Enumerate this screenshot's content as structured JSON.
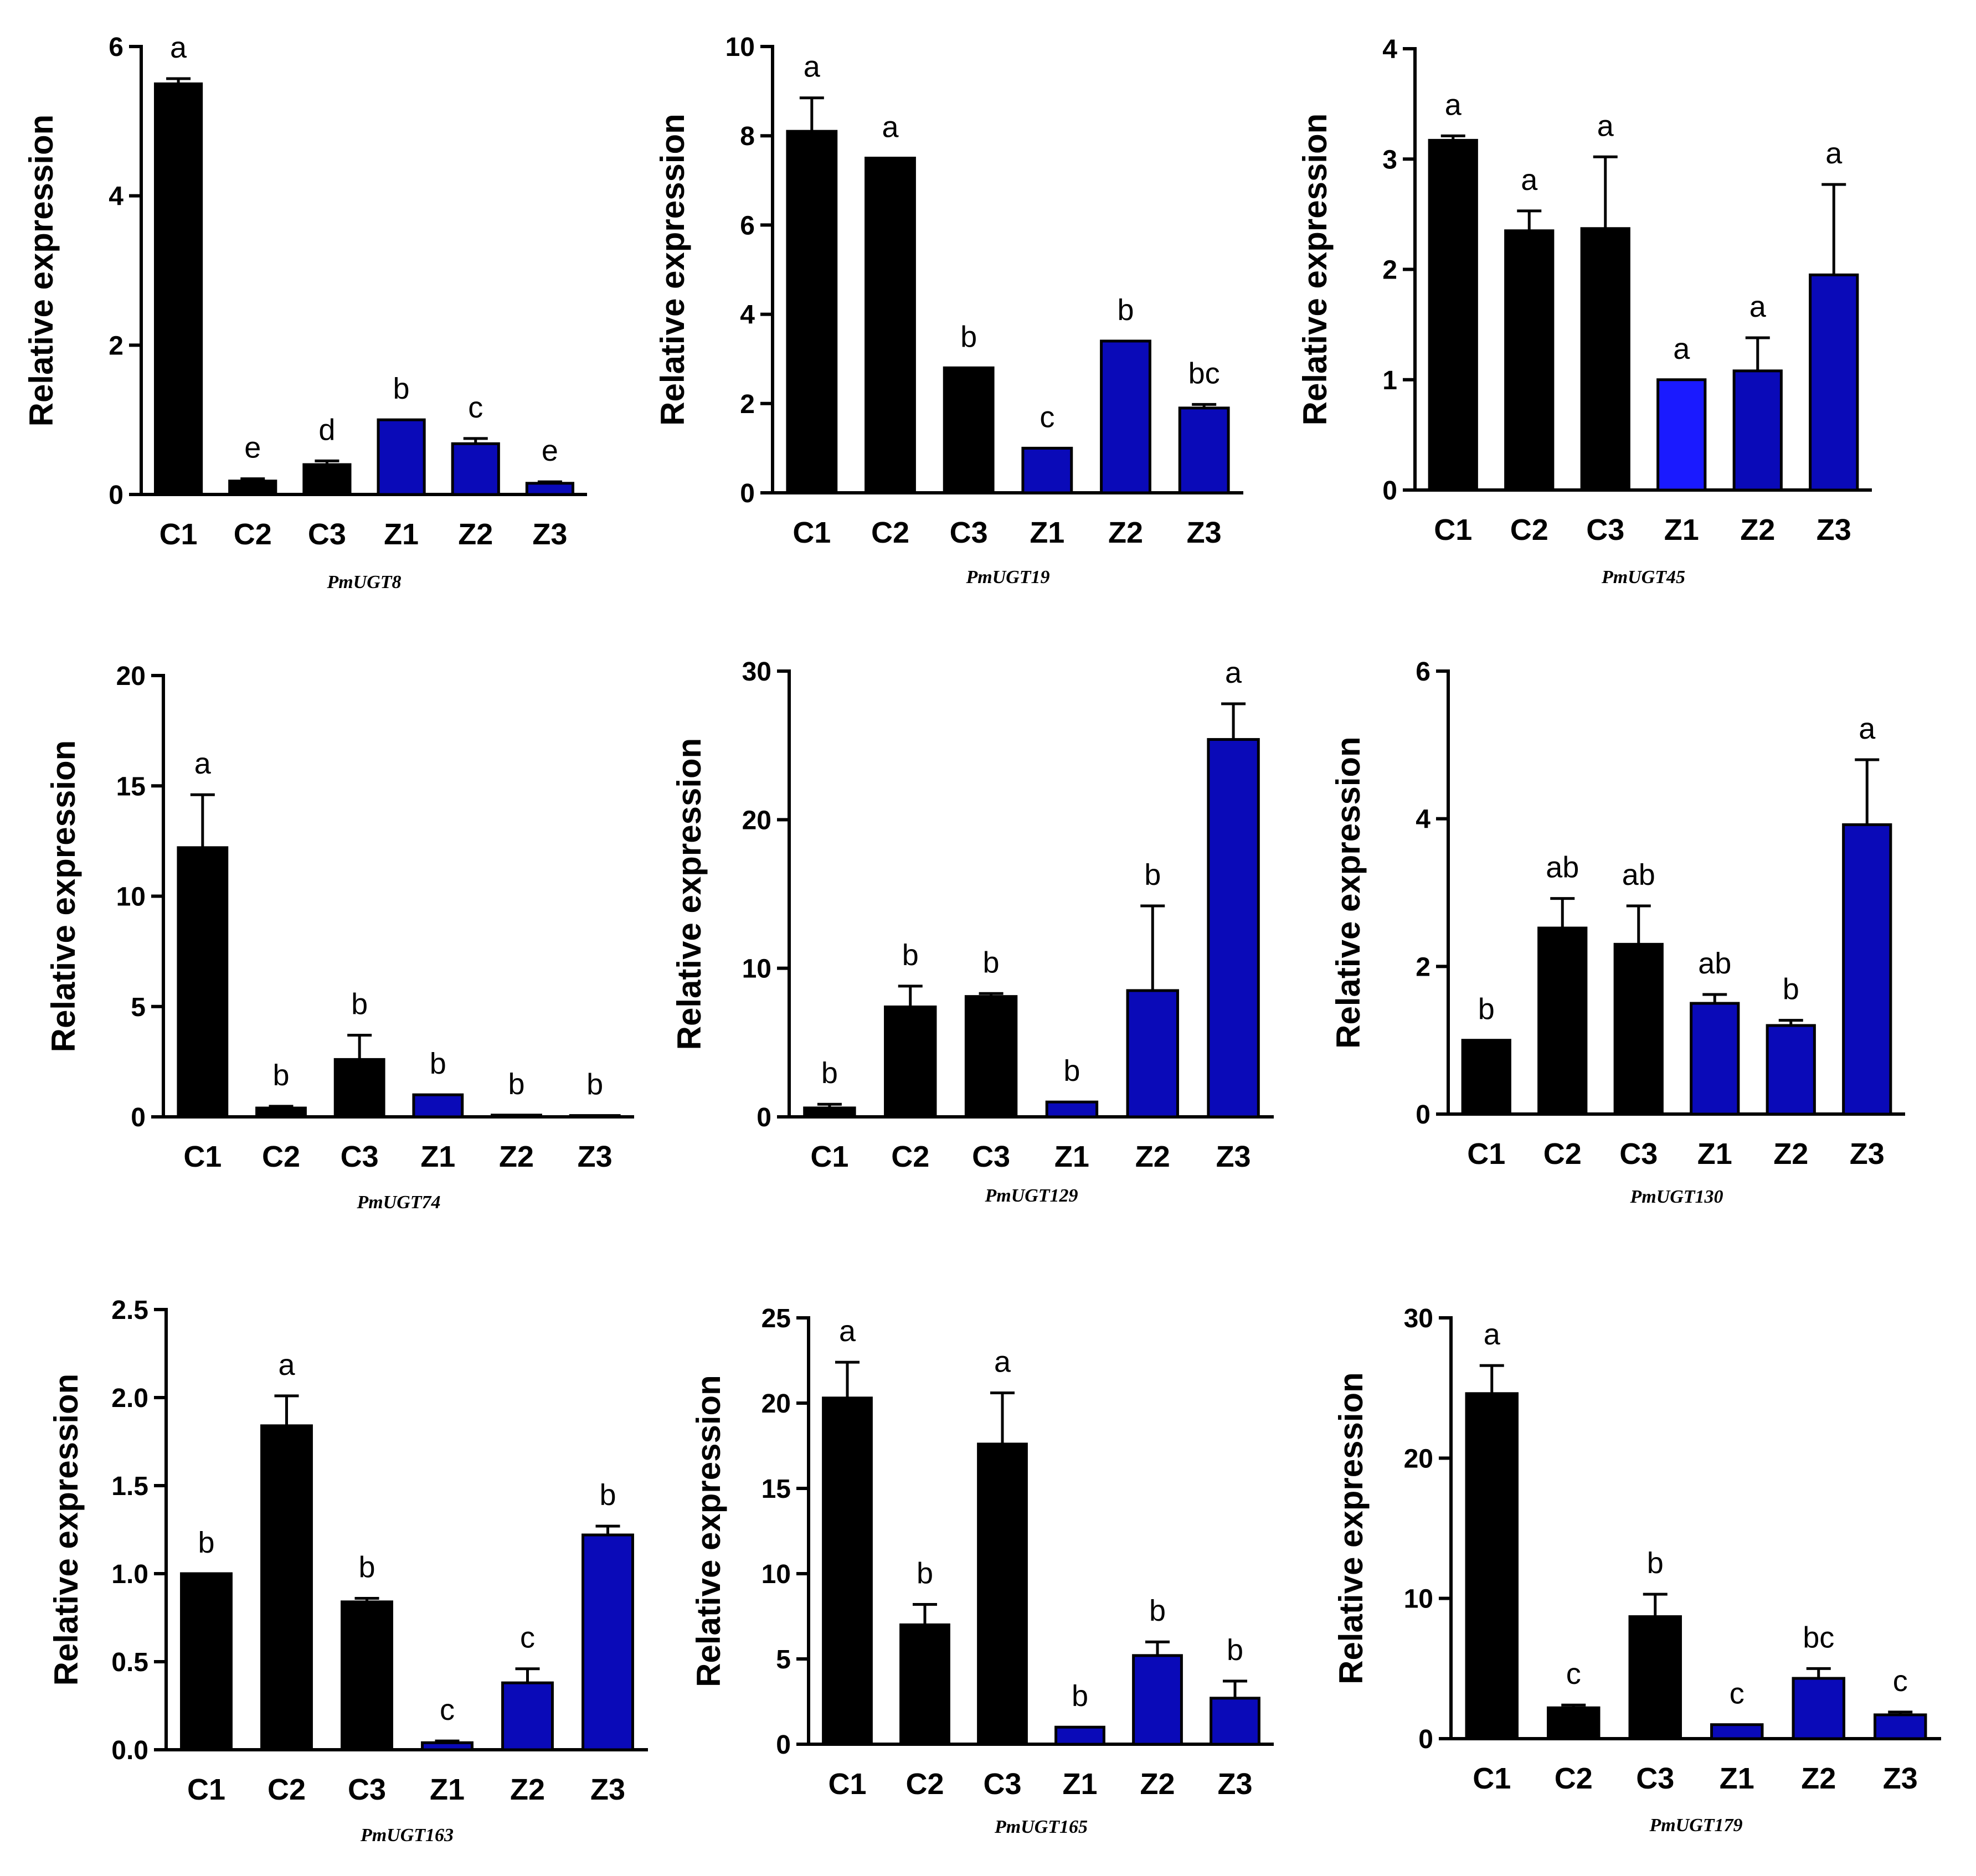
{
  "colors": {
    "control": "#000000",
    "treatment": "#0a0ab8",
    "treatment_bright": "#1a1aff"
  },
  "chart_data": [
    {
      "type": "bar",
      "title": "PmUGT8",
      "ylabel": "Relative expression",
      "xlabel": "",
      "categories": [
        "C1",
        "C2",
        "C3",
        "Z1",
        "Z2",
        "Z3"
      ],
      "values": [
        5.5,
        0.18,
        0.4,
        1.0,
        0.68,
        0.15
      ],
      "errors": [
        0.07,
        0.03,
        0.05,
        0.0,
        0.07,
        0.02
      ],
      "letters": [
        "a",
        "e",
        "d",
        "b",
        "c",
        "e"
      ],
      "ylim": [
        0,
        6
      ],
      "yticks": [
        0,
        2,
        4,
        6
      ],
      "ytick_labels": [
        "0",
        "2",
        "4",
        "6"
      ]
    },
    {
      "type": "bar",
      "title": "PmUGT19",
      "ylabel": "Relative expression",
      "xlabel": "",
      "categories": [
        "C1",
        "C2",
        "C3",
        "Z1",
        "Z2",
        "Z3"
      ],
      "values": [
        8.1,
        7.5,
        2.8,
        1.0,
        3.4,
        1.9
      ],
      "errors": [
        0.75,
        0.0,
        0.0,
        0.0,
        0.0,
        0.08
      ],
      "letters": [
        "a",
        "a",
        "b",
        "c",
        "b",
        "bc"
      ],
      "ylim": [
        0,
        10
      ],
      "yticks": [
        0,
        2,
        4,
        6,
        8,
        10
      ],
      "ytick_labels": [
        "0",
        "2",
        "4",
        "6",
        "8",
        "10"
      ]
    },
    {
      "type": "bar",
      "title": "PmUGT45",
      "ylabel": "Relative expression",
      "xlabel": "",
      "categories": [
        "C1",
        "C2",
        "C3",
        "Z1",
        "Z2",
        "Z3"
      ],
      "values": [
        3.17,
        2.35,
        2.37,
        1.0,
        1.08,
        1.95
      ],
      "errors": [
        0.04,
        0.18,
        0.65,
        0.0,
        0.3,
        0.82
      ],
      "letters": [
        "a",
        "a",
        "a",
        "a",
        "a",
        "a"
      ],
      "ylim": [
        0,
        4
      ],
      "yticks": [
        0,
        1,
        2,
        3,
        4
      ],
      "ytick_labels": [
        "0",
        "1",
        "2",
        "3",
        "4"
      ]
    },
    {
      "type": "bar",
      "title": "PmUGT74",
      "ylabel": "Relative expression",
      "xlabel": "",
      "categories": [
        "C1",
        "C2",
        "C3",
        "Z1",
        "Z2",
        "Z3"
      ],
      "values": [
        12.2,
        0.4,
        2.6,
        1.0,
        0.08,
        0.06
      ],
      "errors": [
        2.4,
        0.08,
        1.1,
        0.0,
        0.0,
        0.0
      ],
      "letters": [
        "a",
        "b",
        "b",
        "b",
        "b",
        "b"
      ],
      "ylim": [
        0,
        20
      ],
      "yticks": [
        0,
        5,
        10,
        15,
        20
      ],
      "ytick_labels": [
        "0",
        "5",
        "10",
        "15",
        "20"
      ]
    },
    {
      "type": "bar",
      "title": "PmUGT129",
      "ylabel": "Relative expression",
      "xlabel": "",
      "categories": [
        "C1",
        "C2",
        "C3",
        "Z1",
        "Z2",
        "Z3"
      ],
      "values": [
        0.6,
        7.4,
        8.1,
        1.0,
        8.5,
        25.4
      ],
      "errors": [
        0.25,
        1.4,
        0.2,
        0.0,
        5.7,
        2.4
      ],
      "letters": [
        "b",
        "b",
        "b",
        "b",
        "b",
        "a"
      ],
      "ylim": [
        0,
        30
      ],
      "yticks": [
        0,
        10,
        20,
        30
      ],
      "ytick_labels": [
        "0",
        "10",
        "20",
        "30"
      ]
    },
    {
      "type": "bar",
      "title": "PmUGT130",
      "ylabel": "Relative expression",
      "xlabel": "",
      "categories": [
        "C1",
        "C2",
        "C3",
        "Z1",
        "Z2",
        "Z3"
      ],
      "values": [
        1.0,
        2.52,
        2.3,
        1.5,
        1.2,
        3.92
      ],
      "errors": [
        0.0,
        0.4,
        0.52,
        0.12,
        0.07,
        0.88
      ],
      "letters": [
        "b",
        "ab",
        "ab",
        "ab",
        "b",
        "a"
      ],
      "ylim": [
        0,
        6
      ],
      "yticks": [
        0,
        2,
        4,
        6
      ],
      "ytick_labels": [
        "0",
        "2",
        "4",
        "6"
      ]
    },
    {
      "type": "bar",
      "title": "PmUGT163",
      "ylabel": "Relative expression",
      "xlabel": "",
      "categories": [
        "C1",
        "C2",
        "C3",
        "Z1",
        "Z2",
        "Z3"
      ],
      "values": [
        1.0,
        1.84,
        0.84,
        0.04,
        0.38,
        1.22
      ],
      "errors": [
        0.0,
        0.17,
        0.02,
        0.01,
        0.08,
        0.05
      ],
      "letters": [
        "b",
        "a",
        "b",
        "c",
        "c",
        "b"
      ],
      "ylim": [
        0,
        2.5
      ],
      "yticks": [
        0,
        0.5,
        1.0,
        1.5,
        2.0,
        2.5
      ],
      "ytick_labels": [
        "0.0",
        "0.5",
        "1.0",
        "1.5",
        "2.0",
        "2.5"
      ]
    },
    {
      "type": "bar",
      "title": "PmUGT165",
      "ylabel": "Relative expression",
      "xlabel": "",
      "categories": [
        "C1",
        "C2",
        "C3",
        "Z1",
        "Z2",
        "Z3"
      ],
      "values": [
        20.3,
        7.0,
        17.6,
        1.0,
        5.2,
        2.7
      ],
      "errors": [
        2.1,
        1.2,
        3.0,
        0.0,
        0.8,
        1.0
      ],
      "letters": [
        "a",
        "b",
        "a",
        "b",
        "b",
        "b"
      ],
      "ylim": [
        0,
        25
      ],
      "yticks": [
        0,
        5,
        10,
        15,
        20,
        25
      ],
      "ytick_labels": [
        "0",
        "5",
        "10",
        "15",
        "20",
        "25"
      ]
    },
    {
      "type": "bar",
      "title": "PmUGT179",
      "ylabel": "Relative expression",
      "xlabel": "",
      "categories": [
        "C1",
        "C2",
        "C3",
        "Z1",
        "Z2",
        "Z3"
      ],
      "values": [
        24.6,
        2.2,
        8.7,
        1.0,
        4.3,
        1.7
      ],
      "errors": [
        2.0,
        0.2,
        1.6,
        0.0,
        0.7,
        0.2
      ],
      "letters": [
        "a",
        "c",
        "b",
        "c",
        "bc",
        "c"
      ],
      "ylim": [
        0,
        30
      ],
      "yticks": [
        0,
        10,
        20,
        30
      ],
      "ytick_labels": [
        "0",
        "10",
        "20",
        "30"
      ]
    }
  ]
}
